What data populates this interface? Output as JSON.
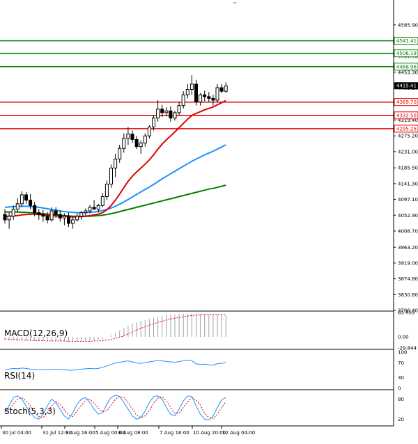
{
  "chart_data": [
    {
      "type": "candlestick",
      "name_hint": "price",
      "yaxis_ticks": [
        "4585.90",
        "4541.41",
        "4497.70",
        "4453.30",
        "4409.10",
        "4364.90",
        "4319.40",
        "4275.20",
        "4231.00",
        "4185.50",
        "4141.30",
        "4097.10",
        "4052.90",
        "4008.70",
        "3963.20",
        "3919.00",
        "3874.80",
        "3830.60",
        "3786.40"
      ],
      "ylim": [
        3786.4,
        4640
      ],
      "xaxis_ticks": [
        "30 Jul 04:00",
        "31 Jul 12:00",
        "3 Aug 16:00",
        "5 Aug 00:00",
        "6 Aug 08:00",
        "7 Aug 16:00",
        "10 Aug 20:00",
        "12 Aug 04:00"
      ],
      "levels": [
        {
          "value": 4541.41,
          "label": "4541.41",
          "color": "#008000"
        },
        {
          "value": 4506.18,
          "label": "4506.18",
          "color": "#008000"
        },
        {
          "value": 4468.96,
          "label": "4468.96",
          "color": "#008000"
        },
        {
          "value": 4369.7,
          "label": "4369.70",
          "color": "#e00000"
        },
        {
          "value": 4332.5,
          "label": "4332.50",
          "color": "#e00000"
        },
        {
          "value": 4295.25,
          "label": "4295.25",
          "color": "#e00000"
        }
      ],
      "current_price": {
        "value": 4415.41,
        "label": "4415.41"
      },
      "candles": [
        [
          4055,
          4070,
          4030,
          4040
        ],
        [
          4040,
          4060,
          4015,
          4050
        ],
        [
          4050,
          4080,
          4040,
          4070
        ],
        [
          4070,
          4100,
          4060,
          4085
        ],
        [
          4085,
          4120,
          4075,
          4110
        ],
        [
          4110,
          4118,
          4085,
          4095
        ],
        [
          4095,
          4112,
          4070,
          4080
        ],
        [
          4080,
          4090,
          4050,
          4060
        ],
        [
          4060,
          4070,
          4040,
          4055
        ],
        [
          4055,
          4068,
          4035,
          4050
        ],
        [
          4050,
          4062,
          4030,
          4040
        ],
        [
          4040,
          4075,
          4035,
          4065
        ],
        [
          4065,
          4075,
          4045,
          4055
        ],
        [
          4055,
          4065,
          4035,
          4045
        ],
        [
          4045,
          4058,
          4025,
          4050
        ],
        [
          4050,
          4060,
          4020,
          4030
        ],
        [
          4030,
          4048,
          4015,
          4040
        ],
        [
          4040,
          4058,
          4035,
          4050
        ],
        [
          4050,
          4065,
          4040,
          4060
        ],
        [
          4060,
          4072,
          4050,
          4065
        ],
        [
          4065,
          4082,
          4058,
          4075
        ],
        [
          4075,
          4095,
          4068,
          4070
        ],
        [
          4070,
          4085,
          4060,
          4080
        ],
        [
          4080,
          4115,
          4075,
          4105
        ],
        [
          4105,
          4150,
          4095,
          4140
        ],
        [
          4140,
          4195,
          4130,
          4185
        ],
        [
          4185,
          4225,
          4160,
          4210
        ],
        [
          4210,
          4250,
          4200,
          4240
        ],
        [
          4240,
          4282,
          4228,
          4268
        ],
        [
          4268,
          4300,
          4250,
          4280
        ],
        [
          4280,
          4290,
          4255,
          4265
        ],
        [
          4265,
          4275,
          4238,
          4245
        ],
        [
          4245,
          4262,
          4225,
          4255
        ],
        [
          4255,
          4282,
          4245,
          4275
        ],
        [
          4275,
          4305,
          4268,
          4300
        ],
        [
          4300,
          4332,
          4290,
          4325
        ],
        [
          4325,
          4375,
          4315,
          4350
        ],
        [
          4350,
          4362,
          4328,
          4340
        ],
        [
          4340,
          4355,
          4330,
          4345
        ],
        [
          4345,
          4358,
          4315,
          4325
        ],
        [
          4325,
          4345,
          4318,
          4340
        ],
        [
          4340,
          4370,
          4332,
          4360
        ],
        [
          4360,
          4400,
          4352,
          4390
        ],
        [
          4390,
          4420,
          4380,
          4405
        ],
        [
          4405,
          4445,
          4390,
          4420
        ],
        [
          4420,
          4432,
          4360,
          4370
        ],
        [
          4370,
          4395,
          4360,
          4390
        ],
        [
          4390,
          4402,
          4372,
          4385
        ],
        [
          4385,
          4398,
          4370,
          4380
        ],
        [
          4380,
          4390,
          4360,
          4375
        ],
        [
          4375,
          4420,
          4368,
          4410
        ],
        [
          4410,
          4420,
          4395,
          4400
        ],
        [
          4400,
          4425,
          4395,
          4415
        ]
      ],
      "ma_red": [
        4050,
        4050,
        4051,
        4052,
        4054,
        4055,
        4056,
        4056,
        4055,
        4054,
        4053,
        4052,
        4051,
        4050,
        4050,
        4049,
        4048,
        4048,
        4049,
        4050,
        4052,
        4054,
        4056,
        4060,
        4068,
        4080,
        4095,
        4112,
        4130,
        4148,
        4162,
        4174,
        4185,
        4196,
        4208,
        4222,
        4238,
        4252,
        4264,
        4275,
        4286,
        4298,
        4310,
        4322,
        4332,
        4338,
        4343,
        4348,
        4352,
        4356,
        4362,
        4368,
        4374
      ],
      "ma_blue": [
        4075,
        4076,
        4077,
        4078,
        4078,
        4078,
        4077,
        4076,
        4075,
        4073,
        4071,
        4069,
        4067,
        4065,
        4063,
        4062,
        4061,
        4060,
        4060,
        4060,
        4061,
        4062,
        4064,
        4066,
        4069,
        4073,
        4078,
        4084,
        4090,
        4097,
        4104,
        4111,
        4118,
        4125,
        4132,
        4139,
        4147,
        4155,
        4162,
        4169,
        4176,
        4183,
        4190,
        4197,
        4204,
        4210,
        4216,
        4222,
        4227,
        4232,
        4238,
        4244,
        4250
      ],
      "ma_green": [
        4062,
        4062,
        4062,
        4062,
        4061,
        4061,
        4060,
        4059,
        4058,
        4057,
        4056,
        4055,
        4054,
        4053,
        4052,
        4051,
        4050,
        4050,
        4050,
        4050,
        4050,
        4051,
        4052,
        4053,
        4055,
        4057,
        4060,
        4063,
        4066,
        4069,
        4072,
        4075,
        4078,
        4081,
        4084,
        4087,
        4090,
        4093,
        4096,
        4099,
        4102,
        4105,
        4108,
        4111,
        4114,
        4117,
        4120,
        4123,
        4126,
        4128,
        4131,
        4134,
        4137
      ]
    },
    {
      "type": "bar+line",
      "name_hint": "macd",
      "label": "MACD(12,26,9)",
      "yaxis_ticks": [
        "65.459",
        "0.00",
        "-29.844"
      ],
      "ylim": [
        -29.844,
        65.459
      ],
      "hist": [
        -8,
        -9,
        -9,
        -10,
        -10,
        -10,
        -11,
        -11,
        -11,
        -12,
        -12,
        -12,
        -12,
        -12,
        -12,
        -13,
        -13,
        -13,
        -12,
        -12,
        -11,
        -10,
        -8,
        -5,
        -1,
        4,
        10,
        17,
        24,
        30,
        35,
        39,
        42,
        45,
        48,
        51,
        54,
        56,
        58,
        59,
        60,
        61,
        62,
        62,
        63,
        63,
        62,
        62,
        61,
        60,
        60,
        59,
        58
      ],
      "signal": [
        -6,
        -7,
        -7,
        -8,
        -8,
        -9,
        -9,
        -10,
        -10,
        -10,
        -11,
        -11,
        -11,
        -11,
        -11,
        -12,
        -12,
        -12,
        -12,
        -12,
        -12,
        -11,
        -11,
        -10,
        -9,
        -7,
        -4,
        -1,
        3,
        8,
        13,
        18,
        23,
        27,
        31,
        35,
        39,
        42,
        45,
        48,
        50,
        52,
        54,
        56,
        57,
        58,
        59,
        60,
        60,
        60,
        60,
        60,
        59
      ]
    },
    {
      "type": "line",
      "name_hint": "rsi",
      "label": "RSI(14)",
      "yaxis_ticks": [
        "100",
        "70",
        "30",
        "0"
      ],
      "ylim": [
        0,
        100
      ],
      "values": [
        52,
        53,
        55,
        54,
        56,
        55,
        53,
        52,
        51,
        52,
        51,
        52,
        53,
        52,
        51,
        50,
        50,
        52,
        53,
        54,
        55,
        54,
        55,
        58,
        62,
        66,
        70,
        72,
        74,
        76,
        73,
        70,
        69,
        71,
        73,
        75,
        77,
        76,
        74,
        73,
        72,
        74,
        76,
        78,
        76,
        68,
        66,
        67,
        65,
        64,
        68,
        69,
        71
      ]
    },
    {
      "type": "line",
      "name_hint": "stoch",
      "label": "Stoch(5,3,3)",
      "yaxis_ticks": [
        "80",
        "20"
      ],
      "ylim": [
        0,
        100
      ],
      "k": [
        40,
        60,
        85,
        90,
        80,
        60,
        40,
        25,
        20,
        35,
        60,
        80,
        70,
        50,
        30,
        20,
        40,
        65,
        80,
        85,
        70,
        50,
        35,
        40,
        65,
        85,
        92,
        88,
        70,
        50,
        30,
        20,
        25,
        45,
        70,
        88,
        90,
        80,
        55,
        35,
        30,
        50,
        75,
        90,
        88,
        60,
        35,
        20,
        18,
        30,
        55,
        78,
        85
      ],
      "d": [
        45,
        50,
        65,
        80,
        85,
        75,
        60,
        40,
        28,
        25,
        40,
        60,
        72,
        65,
        48,
        32,
        28,
        45,
        62,
        77,
        80,
        68,
        52,
        42,
        45,
        62,
        80,
        88,
        85,
        70,
        50,
        33,
        25,
        30,
        45,
        68,
        83,
        88,
        75,
        55,
        38,
        38,
        55,
        72,
        85,
        78,
        62,
        38,
        25,
        22,
        35,
        55,
        73
      ]
    }
  ]
}
